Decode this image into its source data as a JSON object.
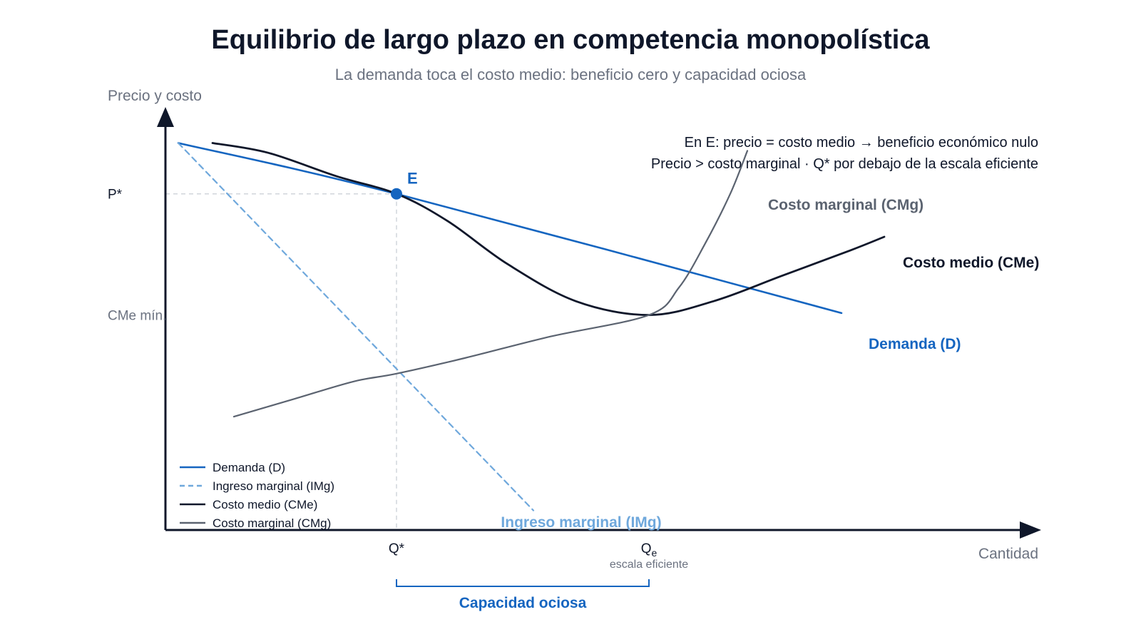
{
  "chart_data": {
    "type": "line",
    "title": "Equilibrio de largo plazo en competencia monopolística",
    "subtitle": "La demanda toca el costo medio: beneficio cero y capacidad ociosa",
    "ylabel": "Precio y costo",
    "xlabel": "Cantidad",
    "xlim": [
      0,
      100
    ],
    "ylim": [
      0,
      100
    ],
    "y_ticks": [
      {
        "label": "P*",
        "value": 86
      },
      {
        "label": "CMe mín.",
        "value": 55
      }
    ],
    "x_ticks": [
      {
        "label": "Q*",
        "value": 27
      },
      {
        "label": "Qe",
        "main": "Q",
        "sub": "e",
        "note": "escala eficiente",
        "value": 56.5
      }
    ],
    "annotations": [
      "En E: precio = costo medio → beneficio económico nulo",
      "Precio > costo marginal · Q* por debajo de la escala eficiente"
    ],
    "equilibrium": {
      "label": "E",
      "x": 27,
      "y": 86
    },
    "bracket": {
      "label": "Capacidad ociosa",
      "from": 27,
      "to": 56.5
    },
    "legend_position": "bottom-left",
    "colors": {
      "demand": "#1565c0",
      "marginal_revenue": "#6fa8dc",
      "average_cost": "#0f172a",
      "marginal_cost": "#5b6370",
      "title": "#0f172a",
      "muted": "#6b7280",
      "guide": "#d1d5db"
    },
    "series": [
      {
        "key": "demand",
        "name": "Demanda (D)",
        "curve_label": "Demanda (D)",
        "style": "solid",
        "points": [
          [
            1.5,
            99
          ],
          [
            27,
            86
          ],
          [
            79,
            55.5
          ]
        ]
      },
      {
        "key": "marginal_revenue",
        "name": "Ingreso marginal (IMg)",
        "curve_label": "Ingreso marginal (IMg)",
        "style": "dashed",
        "points": [
          [
            1.5,
            99
          ],
          [
            43,
            5
          ]
        ]
      },
      {
        "key": "average_cost",
        "name": "Costo medio (CMe)",
        "curve_label": "Costo medio (CMe)",
        "style": "solid",
        "points": [
          [
            5.5,
            99
          ],
          [
            12,
            96.5
          ],
          [
            20,
            90.5
          ],
          [
            27,
            86
          ],
          [
            33,
            79
          ],
          [
            40,
            68
          ],
          [
            48,
            58.5
          ],
          [
            56.5,
            55
          ],
          [
            64,
            58.5
          ],
          [
            72,
            65
          ],
          [
            80,
            71.5
          ],
          [
            84,
            75
          ]
        ]
      },
      {
        "key": "marginal_cost",
        "name": "Costo marginal (CMg)",
        "curve_label": "Costo marginal (CMg)",
        "style": "solid",
        "points": [
          [
            8,
            29
          ],
          [
            15,
            33.5
          ],
          [
            22,
            38
          ],
          [
            27,
            40
          ],
          [
            35,
            44
          ],
          [
            45,
            49.5
          ],
          [
            56.5,
            55
          ],
          [
            60,
            62
          ],
          [
            63,
            73
          ],
          [
            66,
            86
          ],
          [
            68,
            97
          ]
        ]
      }
    ]
  }
}
